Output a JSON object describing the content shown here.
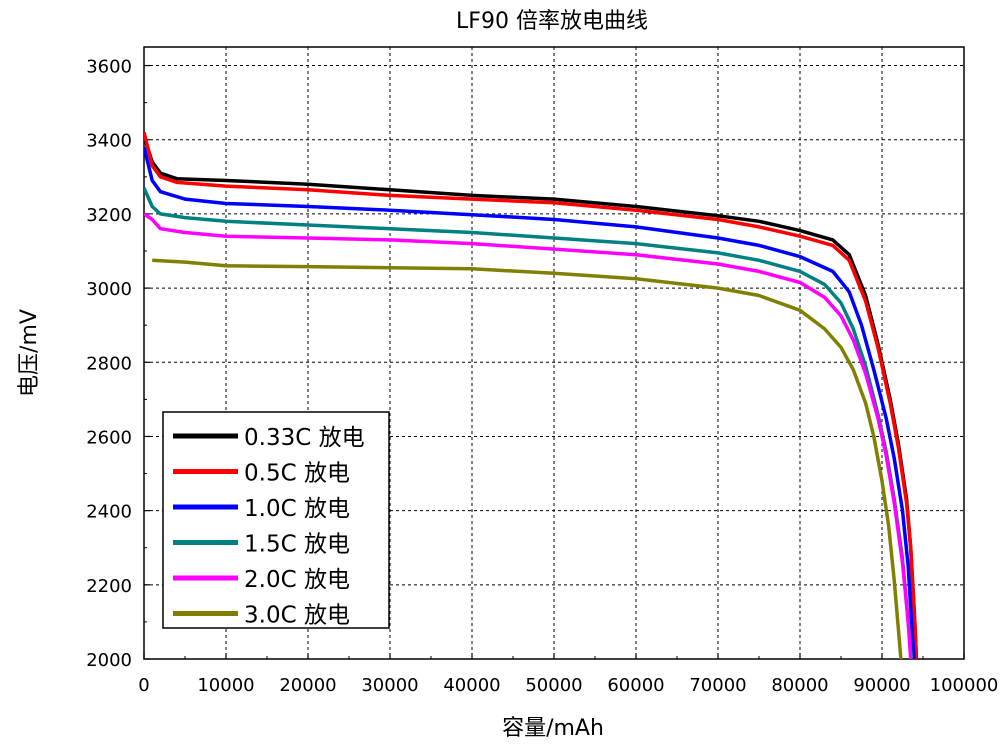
{
  "chart_data": {
    "type": "line",
    "title": "LF90 倍率放电曲线",
    "xlabel": "容量/mAh",
    "ylabel": "电压/mV",
    "xlim": [
      0,
      100000
    ],
    "ylim": [
      2000,
      3650
    ],
    "xticks": [
      0,
      10000,
      20000,
      30000,
      40000,
      50000,
      60000,
      70000,
      80000,
      90000,
      100000
    ],
    "yticks": [
      2000,
      2200,
      2400,
      2600,
      2800,
      3000,
      3200,
      3400,
      3600
    ],
    "grid": true,
    "legend_position": "bottom-left",
    "series": [
      {
        "name": "0.33C 放电",
        "color": "#000000",
        "points": [
          [
            0,
            3410
          ],
          [
            1000,
            3340
          ],
          [
            2000,
            3310
          ],
          [
            4000,
            3295
          ],
          [
            10000,
            3290
          ],
          [
            20000,
            3280
          ],
          [
            30000,
            3265
          ],
          [
            40000,
            3250
          ],
          [
            50000,
            3240
          ],
          [
            60000,
            3220
          ],
          [
            70000,
            3195
          ],
          [
            75000,
            3180
          ],
          [
            80000,
            3155
          ],
          [
            84000,
            3130
          ],
          [
            86000,
            3090
          ],
          [
            88000,
            2980
          ],
          [
            89500,
            2850
          ],
          [
            91000,
            2700
          ],
          [
            92000,
            2580
          ],
          [
            93000,
            2430
          ],
          [
            93500,
            2300
          ],
          [
            94000,
            2100
          ],
          [
            94200,
            2000
          ]
        ]
      },
      {
        "name": "0.5C 放电",
        "color": "#ff0000",
        "points": [
          [
            0,
            3420
          ],
          [
            1000,
            3330
          ],
          [
            2000,
            3300
          ],
          [
            4000,
            3285
          ],
          [
            10000,
            3275
          ],
          [
            20000,
            3265
          ],
          [
            30000,
            3250
          ],
          [
            40000,
            3240
          ],
          [
            50000,
            3230
          ],
          [
            60000,
            3210
          ],
          [
            70000,
            3185
          ],
          [
            75000,
            3165
          ],
          [
            80000,
            3140
          ],
          [
            84000,
            3115
          ],
          [
            86000,
            3075
          ],
          [
            88000,
            2965
          ],
          [
            89500,
            2840
          ],
          [
            91000,
            2690
          ],
          [
            92000,
            2570
          ],
          [
            93000,
            2420
          ],
          [
            93500,
            2300
          ],
          [
            94000,
            2100
          ],
          [
            94200,
            2000
          ]
        ]
      },
      {
        "name": "1.0C 放电",
        "color": "#0000ff",
        "points": [
          [
            0,
            3380
          ],
          [
            1000,
            3290
          ],
          [
            2000,
            3260
          ],
          [
            5000,
            3240
          ],
          [
            10000,
            3228
          ],
          [
            20000,
            3220
          ],
          [
            30000,
            3210
          ],
          [
            40000,
            3198
          ],
          [
            50000,
            3185
          ],
          [
            60000,
            3165
          ],
          [
            70000,
            3135
          ],
          [
            75000,
            3115
          ],
          [
            80000,
            3085
          ],
          [
            84000,
            3045
          ],
          [
            86000,
            2990
          ],
          [
            87500,
            2900
          ],
          [
            89000,
            2780
          ],
          [
            90500,
            2650
          ],
          [
            91500,
            2540
          ],
          [
            92500,
            2400
          ],
          [
            93200,
            2250
          ],
          [
            93600,
            2100
          ],
          [
            93900,
            2000
          ]
        ]
      },
      {
        "name": "1.5C 放电",
        "color": "#008080",
        "points": [
          [
            0,
            3270
          ],
          [
            1000,
            3220
          ],
          [
            2000,
            3200
          ],
          [
            5000,
            3190
          ],
          [
            10000,
            3180
          ],
          [
            20000,
            3170
          ],
          [
            30000,
            3160
          ],
          [
            40000,
            3150
          ],
          [
            50000,
            3135
          ],
          [
            60000,
            3120
          ],
          [
            70000,
            3095
          ],
          [
            75000,
            3075
          ],
          [
            80000,
            3045
          ],
          [
            83000,
            3010
          ],
          [
            85000,
            2960
          ],
          [
            86500,
            2890
          ],
          [
            88000,
            2790
          ],
          [
            89500,
            2660
          ],
          [
            90500,
            2560
          ],
          [
            91500,
            2430
          ],
          [
            92500,
            2270
          ],
          [
            93200,
            2100
          ],
          [
            93600,
            2000
          ]
        ]
      },
      {
        "name": "2.0C 放电",
        "color": "#ff00ff",
        "points": [
          [
            0,
            3200
          ],
          [
            1000,
            3185
          ],
          [
            2000,
            3160
          ],
          [
            5000,
            3150
          ],
          [
            10000,
            3140
          ],
          [
            20000,
            3135
          ],
          [
            30000,
            3130
          ],
          [
            40000,
            3120
          ],
          [
            50000,
            3105
          ],
          [
            60000,
            3090
          ],
          [
            70000,
            3065
          ],
          [
            75000,
            3045
          ],
          [
            80000,
            3015
          ],
          [
            83000,
            2975
          ],
          [
            85000,
            2925
          ],
          [
            86500,
            2860
          ],
          [
            88000,
            2770
          ],
          [
            89500,
            2650
          ],
          [
            90500,
            2550
          ],
          [
            91500,
            2420
          ],
          [
            92500,
            2260
          ],
          [
            93200,
            2100
          ],
          [
            93500,
            2000
          ]
        ]
      },
      {
        "name": "3.0C 放电",
        "color": "#808000",
        "points": [
          [
            1000,
            3075
          ],
          [
            5000,
            3070
          ],
          [
            10000,
            3060
          ],
          [
            20000,
            3058
          ],
          [
            30000,
            3055
          ],
          [
            40000,
            3052
          ],
          [
            50000,
            3040
          ],
          [
            60000,
            3025
          ],
          [
            70000,
            3000
          ],
          [
            75000,
            2980
          ],
          [
            80000,
            2940
          ],
          [
            83000,
            2890
          ],
          [
            85000,
            2840
          ],
          [
            86500,
            2780
          ],
          [
            88000,
            2690
          ],
          [
            89000,
            2600
          ],
          [
            90000,
            2480
          ],
          [
            90800,
            2360
          ],
          [
            91500,
            2210
          ],
          [
            92000,
            2080
          ],
          [
            92300,
            2000
          ]
        ]
      }
    ]
  }
}
